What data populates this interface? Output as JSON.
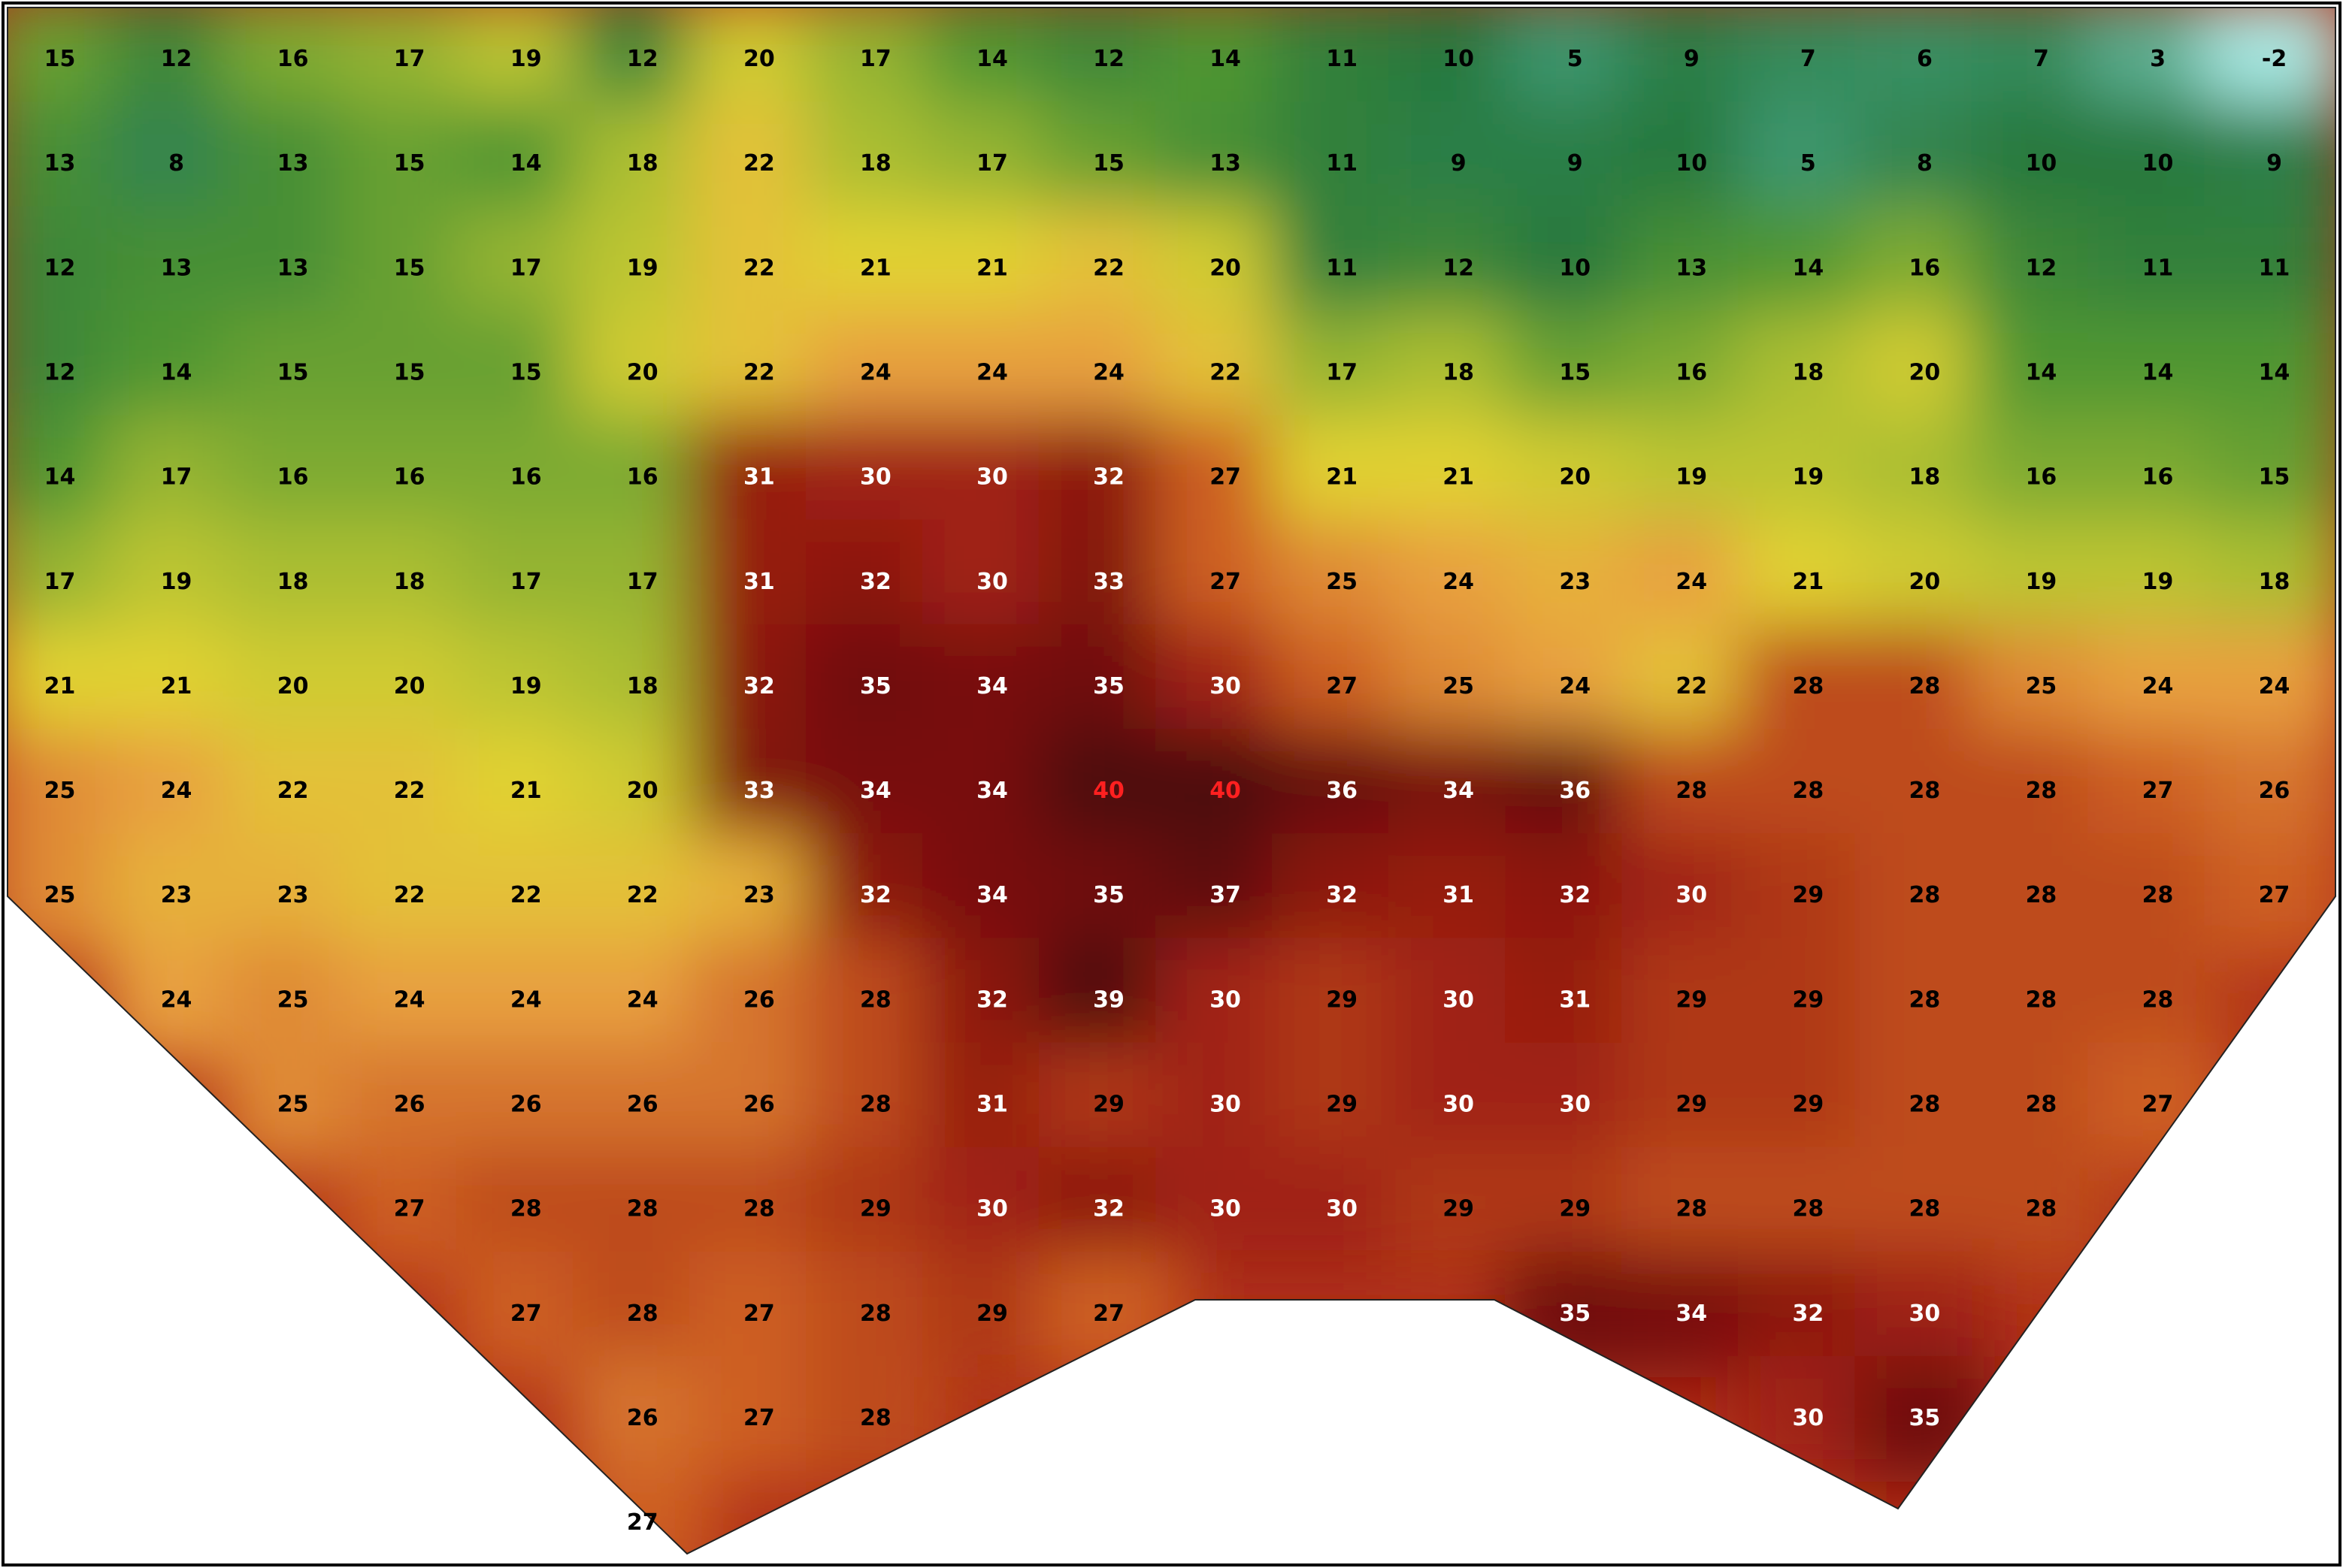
{
  "grid": {
    "rows": [
      [
        15,
        12,
        16,
        17,
        19,
        12,
        20,
        17,
        14,
        12,
        14,
        11,
        10,
        5,
        9,
        7,
        6,
        7,
        3,
        -2
      ],
      [
        13,
        8,
        13,
        15,
        14,
        18,
        22,
        18,
        17,
        15,
        13,
        11,
        9,
        9,
        10,
        5,
        8,
        10,
        10,
        9
      ],
      [
        12,
        13,
        13,
        15,
        17,
        19,
        22,
        21,
        21,
        22,
        20,
        11,
        12,
        10,
        13,
        14,
        16,
        12,
        11,
        11
      ],
      [
        12,
        14,
        15,
        15,
        15,
        20,
        22,
        24,
        24,
        24,
        22,
        17,
        18,
        15,
        16,
        18,
        20,
        14,
        14,
        14
      ],
      [
        14,
        17,
        16,
        16,
        16,
        16,
        31,
        30,
        30,
        32,
        27,
        21,
        21,
        20,
        19,
        19,
        18,
        16,
        16,
        15
      ],
      [
        17,
        19,
        18,
        18,
        17,
        17,
        31,
        32,
        30,
        33,
        27,
        25,
        24,
        23,
        24,
        21,
        20,
        19,
        19,
        18
      ],
      [
        21,
        21,
        20,
        20,
        19,
        18,
        32,
        35,
        34,
        35,
        30,
        27,
        25,
        24,
        22,
        28,
        28,
        25,
        24,
        24
      ],
      [
        25,
        24,
        22,
        22,
        21,
        20,
        33,
        34,
        34,
        40,
        40,
        36,
        34,
        36,
        28,
        28,
        28,
        28,
        27,
        26
      ],
      [
        25,
        23,
        23,
        22,
        22,
        22,
        23,
        32,
        34,
        35,
        37,
        32,
        31,
        32,
        30,
        29,
        28,
        28,
        28,
        27
      ],
      [
        null,
        24,
        25,
        24,
        24,
        24,
        26,
        28,
        32,
        39,
        30,
        29,
        30,
        31,
        29,
        29,
        28,
        28,
        28,
        null
      ],
      [
        null,
        null,
        25,
        26,
        26,
        26,
        26,
        28,
        31,
        29,
        30,
        29,
        30,
        30,
        29,
        29,
        28,
        28,
        27,
        null
      ],
      [
        null,
        null,
        null,
        27,
        28,
        28,
        28,
        29,
        30,
        32,
        30,
        30,
        29,
        29,
        28,
        28,
        28,
        28,
        null,
        null
      ],
      [
        null,
        null,
        null,
        null,
        27,
        28,
        27,
        28,
        29,
        27,
        null,
        null,
        null,
        35,
        34,
        32,
        30,
        null,
        null,
        null
      ],
      [
        null,
        null,
        null,
        null,
        null,
        26,
        27,
        28,
        null,
        null,
        null,
        null,
        null,
        null,
        null,
        30,
        35,
        null,
        null,
        null
      ],
      [
        null,
        null,
        null,
        null,
        null,
        27,
        null,
        null,
        null,
        null,
        null,
        null,
        null,
        null,
        null,
        null,
        null,
        null,
        null,
        null
      ]
    ]
  }
}
